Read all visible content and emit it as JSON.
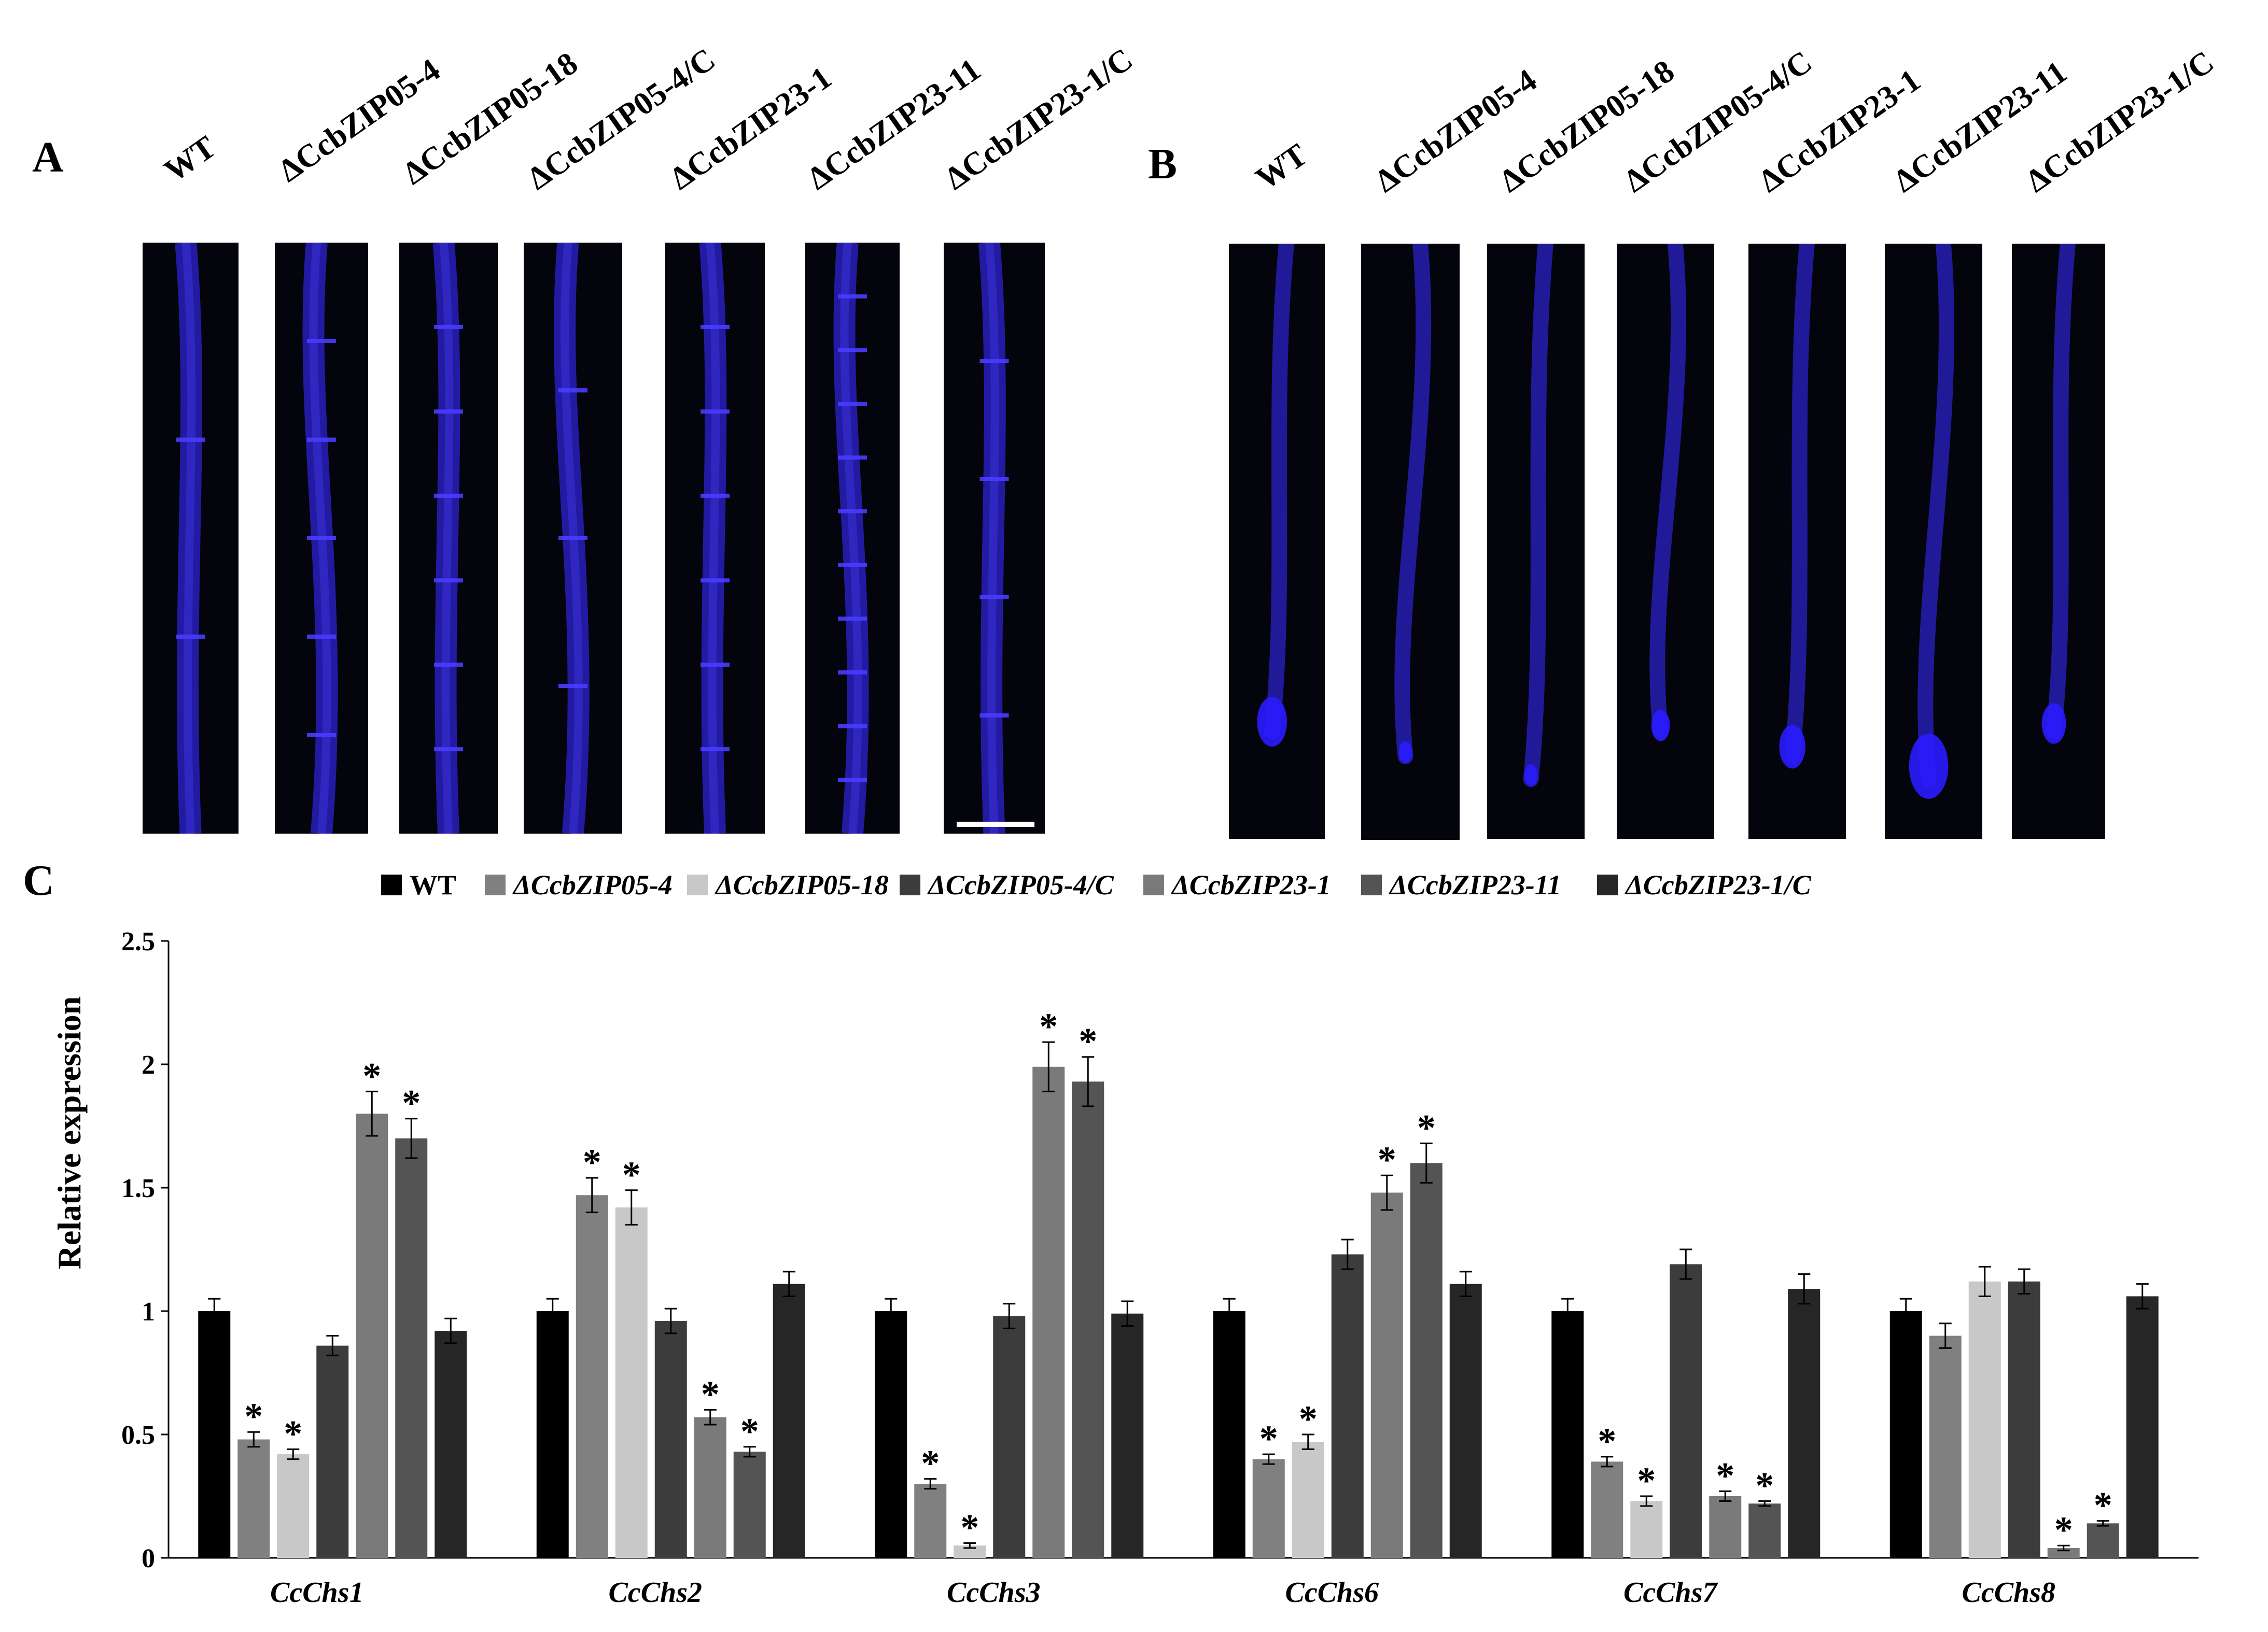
{
  "panels": {
    "a_label": "A",
    "b_label": "B",
    "c_label": "C"
  },
  "strains": [
    "WT",
    "ΔCcbZIP05-4",
    "ΔCcbZIP05-18",
    "ΔCcbZIP05-4/C",
    "ΔCcbZIP23-1",
    "ΔCcbZIP23-11",
    "ΔCcbZIP23-1/C"
  ],
  "panel_a_strain_labels": [
    "WT",
    "ΔCcbZIP05-4",
    "ΔCcbZIP05-18",
    "ΔCcbZIP05-4/C",
    "ΔCcbZIP23-1",
    "ΔCcbZIP23-11",
    "ΔCcbZIP23-1/C"
  ],
  "panel_b_strain_labels": [
    "WT",
    "ΔCcbZIP05-4",
    "ΔCcbZIP05-18",
    "ΔCcbZIP05-4/C",
    "ΔCcbZIP23-1",
    "ΔCcbZIP23-11",
    "ΔCcbZIP23-1/C"
  ],
  "colors": {
    "background": "#ffffff",
    "micro_bg": "#04040c",
    "hypha": "#2a22c8",
    "septum": "#4a3cff",
    "series": [
      "#000000",
      "#808080",
      "#c8c8c8",
      "#3c3c3c",
      "#7a7a7a",
      "#545454",
      "#262626"
    ]
  },
  "chart_data": {
    "type": "bar",
    "categories": [
      "CcChs1",
      "CcChs2",
      "CcChs3",
      "CcChs6",
      "CcChs7",
      "CcChs8"
    ],
    "series": [
      {
        "name": "WT",
        "values": [
          1.0,
          1.0,
          1.0,
          1.0,
          1.0,
          1.0
        ],
        "errors": [
          0.05,
          0.05,
          0.05,
          0.05,
          0.05,
          0.05
        ],
        "sig": [
          false,
          false,
          false,
          false,
          false,
          false
        ]
      },
      {
        "name": "ΔCcbZIP05-4",
        "values": [
          0.48,
          1.47,
          0.3,
          0.4,
          0.39,
          0.9
        ],
        "errors": [
          0.03,
          0.07,
          0.02,
          0.02,
          0.02,
          0.05
        ],
        "sig": [
          true,
          true,
          true,
          true,
          true,
          false
        ]
      },
      {
        "name": "ΔCcbZIP05-18",
        "values": [
          0.42,
          1.42,
          0.05,
          0.47,
          0.23,
          1.12
        ],
        "errors": [
          0.02,
          0.07,
          0.01,
          0.03,
          0.02,
          0.06
        ],
        "sig": [
          true,
          true,
          true,
          true,
          true,
          false
        ]
      },
      {
        "name": "ΔCcbZIP05-4/C",
        "values": [
          0.86,
          0.96,
          0.98,
          1.23,
          1.19,
          1.12
        ],
        "errors": [
          0.04,
          0.05,
          0.05,
          0.06,
          0.06,
          0.05
        ],
        "sig": [
          false,
          false,
          false,
          false,
          false,
          false
        ]
      },
      {
        "name": "ΔCcbZIP23-1",
        "values": [
          1.8,
          0.57,
          1.99,
          1.48,
          0.25,
          0.04
        ],
        "errors": [
          0.09,
          0.03,
          0.1,
          0.07,
          0.02,
          0.01
        ],
        "sig": [
          true,
          true,
          true,
          true,
          true,
          true
        ]
      },
      {
        "name": "ΔCcbZIP23-11",
        "values": [
          1.7,
          0.43,
          1.93,
          1.6,
          0.22,
          0.14
        ],
        "errors": [
          0.08,
          0.02,
          0.1,
          0.08,
          0.01,
          0.01
        ],
        "sig": [
          true,
          true,
          true,
          true,
          true,
          true
        ]
      },
      {
        "name": "ΔCcbZIP23-1/C",
        "values": [
          0.92,
          1.11,
          0.99,
          1.11,
          1.09,
          1.06
        ],
        "errors": [
          0.05,
          0.05,
          0.05,
          0.05,
          0.06,
          0.05
        ],
        "sig": [
          false,
          false,
          false,
          false,
          false,
          false
        ]
      }
    ],
    "ylabel": "Relative expression",
    "xlabel": "",
    "ylim": [
      0,
      2.5
    ],
    "yticks": [
      0,
      0.5,
      1,
      1.5,
      2,
      2.5
    ],
    "ytick_labels": [
      "0",
      "0.5",
      "1",
      "1.5",
      "2",
      "2.5"
    ],
    "significance_marker": "*",
    "legend_position": "top-center",
    "grid": false
  }
}
